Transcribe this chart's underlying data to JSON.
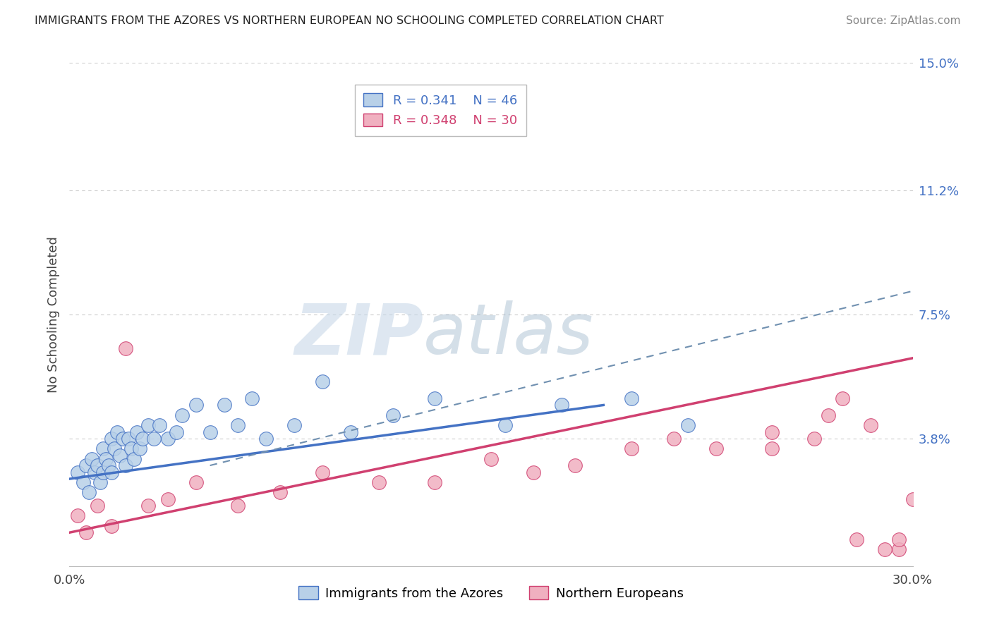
{
  "title": "IMMIGRANTS FROM THE AZORES VS NORTHERN EUROPEAN NO SCHOOLING COMPLETED CORRELATION CHART",
  "source": "Source: ZipAtlas.com",
  "ylabel": "No Schooling Completed",
  "legend_label_1": "Immigrants from the Azores",
  "legend_label_2": "Northern Europeans",
  "r1": "0.341",
  "n1": "46",
  "r2": "0.348",
  "n2": "30",
  "xlim": [
    0.0,
    0.3
  ],
  "ylim": [
    0.0,
    0.15
  ],
  "xtick_labels": [
    "0.0%",
    "30.0%"
  ],
  "ytick_values": [
    0.038,
    0.075,
    0.112,
    0.15
  ],
  "ytick_labels": [
    "3.8%",
    "7.5%",
    "11.2%",
    "15.0%"
  ],
  "color_blue_fill": "#b8d0e8",
  "color_blue_edge": "#4472c4",
  "color_pink_fill": "#f0b0c0",
  "color_pink_edge": "#d04070",
  "color_legend_blue": "#4472c4",
  "color_legend_pink": "#d04070",
  "background_color": "#ffffff",
  "grid_color": "#cccccc",
  "watermark_zip": "ZIP",
  "watermark_atlas": "atlas",
  "blue_points_x": [
    0.003,
    0.005,
    0.006,
    0.007,
    0.008,
    0.009,
    0.01,
    0.011,
    0.012,
    0.012,
    0.013,
    0.014,
    0.015,
    0.015,
    0.016,
    0.017,
    0.018,
    0.019,
    0.02,
    0.021,
    0.022,
    0.023,
    0.024,
    0.025,
    0.026,
    0.028,
    0.03,
    0.032,
    0.035,
    0.038,
    0.04,
    0.045,
    0.05,
    0.055,
    0.06,
    0.065,
    0.07,
    0.08,
    0.09,
    0.1,
    0.115,
    0.13,
    0.155,
    0.175,
    0.2,
    0.22
  ],
  "blue_points_y": [
    0.028,
    0.025,
    0.03,
    0.022,
    0.032,
    0.028,
    0.03,
    0.025,
    0.035,
    0.028,
    0.032,
    0.03,
    0.028,
    0.038,
    0.035,
    0.04,
    0.033,
    0.038,
    0.03,
    0.038,
    0.035,
    0.032,
    0.04,
    0.035,
    0.038,
    0.042,
    0.038,
    0.042,
    0.038,
    0.04,
    0.045,
    0.048,
    0.04,
    0.048,
    0.042,
    0.05,
    0.038,
    0.042,
    0.055,
    0.04,
    0.045,
    0.05,
    0.042,
    0.048,
    0.05,
    0.042
  ],
  "pink_points_x": [
    0.003,
    0.006,
    0.01,
    0.015,
    0.02,
    0.028,
    0.035,
    0.045,
    0.06,
    0.075,
    0.09,
    0.11,
    0.13,
    0.15,
    0.165,
    0.18,
    0.2,
    0.215,
    0.23,
    0.25,
    0.265,
    0.275,
    0.285,
    0.295,
    0.3,
    0.25,
    0.27,
    0.28,
    0.29,
    0.295
  ],
  "pink_points_y": [
    0.015,
    0.01,
    0.018,
    0.012,
    0.065,
    0.018,
    0.02,
    0.025,
    0.018,
    0.022,
    0.028,
    0.025,
    0.025,
    0.032,
    0.028,
    0.03,
    0.035,
    0.038,
    0.035,
    0.04,
    0.038,
    0.05,
    0.042,
    0.005,
    0.02,
    0.035,
    0.045,
    0.008,
    0.005,
    0.008
  ],
  "blue_line_x0": 0.0,
  "blue_line_y0": 0.026,
  "blue_line_x1": 0.19,
  "blue_line_y1": 0.048,
  "pink_line_x0": 0.0,
  "pink_line_y0": 0.01,
  "pink_line_x1": 0.3,
  "pink_line_y1": 0.062,
  "dash_line_x0": 0.05,
  "dash_line_y0": 0.03,
  "dash_line_x1": 0.3,
  "dash_line_y1": 0.082
}
